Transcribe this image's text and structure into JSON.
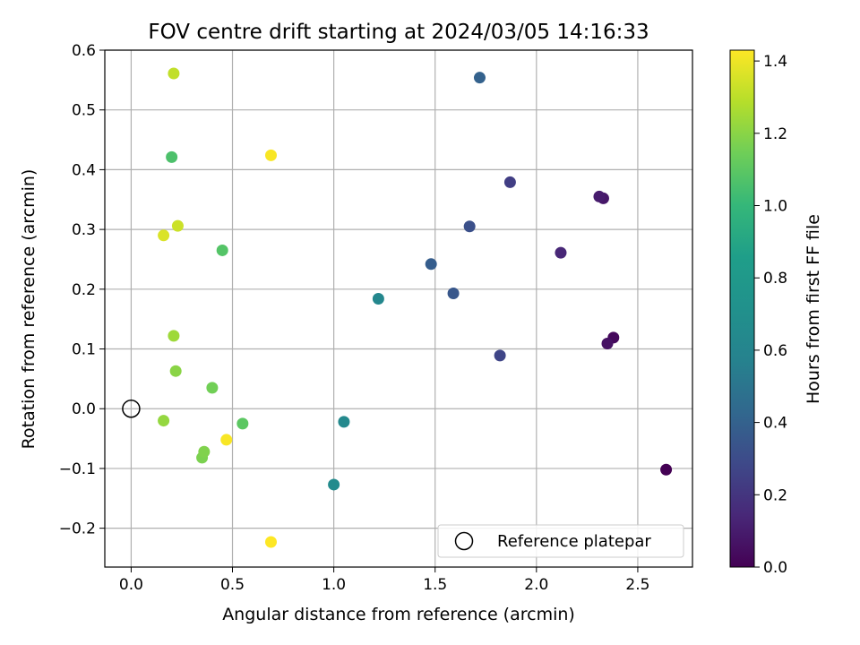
{
  "chart_data": {
    "type": "scatter",
    "title": "FOV centre drift starting at 2024/03/05 14:16:33",
    "xlabel": "Angular distance from reference (arcmin)",
    "ylabel": "Rotation from reference (arcmin)",
    "xlim": [
      -0.13,
      2.77
    ],
    "ylim": [
      -0.265,
      0.6
    ],
    "xticks": [
      0.0,
      0.5,
      1.0,
      1.5,
      2.0,
      2.5
    ],
    "xtick_labels": [
      "0.0",
      "0.5",
      "1.0",
      "1.5",
      "2.0",
      "2.5"
    ],
    "yticks": [
      -0.2,
      -0.1,
      0.0,
      0.1,
      0.2,
      0.3,
      0.4,
      0.5,
      0.6
    ],
    "ytick_labels": [
      "−0.2",
      "−0.1",
      "0.0",
      "0.1",
      "0.2",
      "0.3",
      "0.4",
      "0.5",
      "0.6"
    ],
    "grid": true,
    "legend_position": "lower-right",
    "legend": [
      {
        "label": "Reference platepar",
        "marker": "open-circle"
      }
    ],
    "reference_point": {
      "x": 0.0,
      "y": 0.0
    },
    "colorbar": {
      "label": "Hours from first FF file",
      "colormap": "viridis",
      "range": [
        0.0,
        1.43
      ],
      "ticks": [
        0.0,
        0.2,
        0.4,
        0.6,
        0.8,
        1.0,
        1.2,
        1.4
      ],
      "tick_labels": [
        "0.0",
        "0.2",
        "0.4",
        "0.6",
        "0.8",
        "1.0",
        "1.2",
        "1.4"
      ]
    },
    "points": [
      {
        "x": 2.64,
        "y": -0.102,
        "hours": 0.0
      },
      {
        "x": 2.38,
        "y": 0.119,
        "hours": 0.03
      },
      {
        "x": 2.35,
        "y": 0.109,
        "hours": 0.06
      },
      {
        "x": 2.33,
        "y": 0.352,
        "hours": 0.08
      },
      {
        "x": 2.31,
        "y": 0.355,
        "hours": 0.1
      },
      {
        "x": 2.12,
        "y": 0.261,
        "hours": 0.14
      },
      {
        "x": 1.87,
        "y": 0.379,
        "hours": 0.24
      },
      {
        "x": 1.82,
        "y": 0.089,
        "hours": 0.27
      },
      {
        "x": 1.67,
        "y": 0.305,
        "hours": 0.32
      },
      {
        "x": 1.59,
        "y": 0.193,
        "hours": 0.35
      },
      {
        "x": 1.48,
        "y": 0.242,
        "hours": 0.38
      },
      {
        "x": 1.72,
        "y": 0.554,
        "hours": 0.4
      },
      {
        "x": 1.22,
        "y": 0.184,
        "hours": 0.62
      },
      {
        "x": 1.05,
        "y": -0.022,
        "hours": 0.64
      },
      {
        "x": 1.0,
        "y": -0.127,
        "hours": 0.66
      },
      {
        "x": 0.2,
        "y": 0.421,
        "hours": 1.06
      },
      {
        "x": 0.45,
        "y": 0.265,
        "hours": 1.08
      },
      {
        "x": 0.55,
        "y": -0.025,
        "hours": 1.1
      },
      {
        "x": 0.4,
        "y": 0.035,
        "hours": 1.15
      },
      {
        "x": 0.35,
        "y": -0.082,
        "hours": 1.17
      },
      {
        "x": 0.36,
        "y": -0.072,
        "hours": 1.18
      },
      {
        "x": 0.22,
        "y": 0.063,
        "hours": 1.2
      },
      {
        "x": 0.16,
        "y": -0.02,
        "hours": 1.22
      },
      {
        "x": 0.21,
        "y": 0.122,
        "hours": 1.24
      },
      {
        "x": 0.21,
        "y": 0.561,
        "hours": 1.31
      },
      {
        "x": 0.23,
        "y": 0.306,
        "hours": 1.33
      },
      {
        "x": 0.16,
        "y": 0.29,
        "hours": 1.36
      },
      {
        "x": 0.69,
        "y": 0.424,
        "hours": 1.42
      },
      {
        "x": 0.47,
        "y": -0.052,
        "hours": 1.42
      },
      {
        "x": 0.69,
        "y": -0.223,
        "hours": 1.43
      }
    ]
  }
}
